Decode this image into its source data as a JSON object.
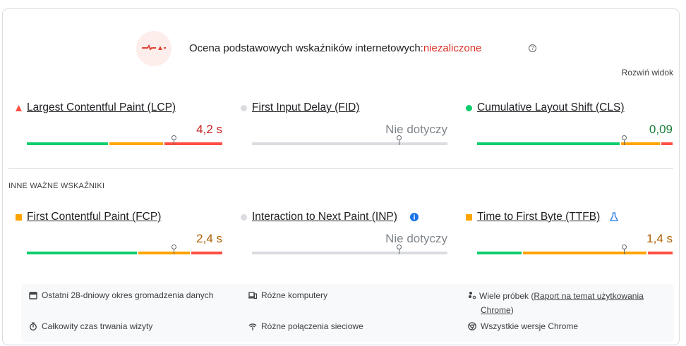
{
  "header": {
    "title": "Ocena podstawowych wskaźników internetowych:",
    "status": "niezaliczone",
    "status_color": "#d93025",
    "help_icon": "question-circle-icon",
    "expand_label": "Rozwiń widok"
  },
  "colors": {
    "good": "#0cce6b",
    "average": "#ffa400",
    "poor": "#ff4e42",
    "na": "#dadce0"
  },
  "core_metrics": [
    {
      "name": "Largest Contentful Paint (LCP)",
      "value": "4,2 s",
      "rating": "poor",
      "icon": "triangle-icon",
      "distribution": [
        42,
        28,
        30
      ],
      "p75": 75
    },
    {
      "name": "First Input Delay (FID)",
      "value": "Nie dotyczy",
      "rating": "na",
      "icon": "circle-icon",
      "distribution": [],
      "p75": 75
    },
    {
      "name": "Cumulative Layout Shift (CLS)",
      "value": "0,09",
      "rating": "good",
      "icon": "circle-icon",
      "distribution": [
        74,
        20,
        6
      ],
      "p75": 75
    }
  ],
  "other_section_title": "INNE WAŻNE WSKAŹNIKI",
  "other_metrics": [
    {
      "name": "First Contentful Paint (FCP)",
      "value": "2,4 s",
      "rating": "average",
      "icon": "square-icon",
      "distribution": [
        57,
        27,
        16
      ],
      "p75": 75
    },
    {
      "name": "Interaction to Next Paint (INP)",
      "value": "Nie dotyczy",
      "rating": "na",
      "icon": "circle-icon",
      "extra_icon": "info-icon",
      "distribution": [],
      "p75": 75
    },
    {
      "name": "Time to First Byte (TTFB)",
      "value": "1,4 s",
      "rating": "average",
      "icon": "square-icon",
      "extra_icon": "flask-icon",
      "distribution": [
        23,
        64,
        13
      ],
      "p75": 75
    }
  ],
  "footer": {
    "period": "Ostatni 28-dniowy okres gromadzenia danych",
    "devices": "Różne komputery",
    "samples_prefix": "Wiele próbek (",
    "samples_link": "Raport na temat użytkowania Chrome",
    "samples_suffix": ")",
    "duration": "Całkowity czas trwania wizyty",
    "connections": "Różne połączenia sieciowe",
    "versions": "Wszystkie wersje Chrome"
  }
}
